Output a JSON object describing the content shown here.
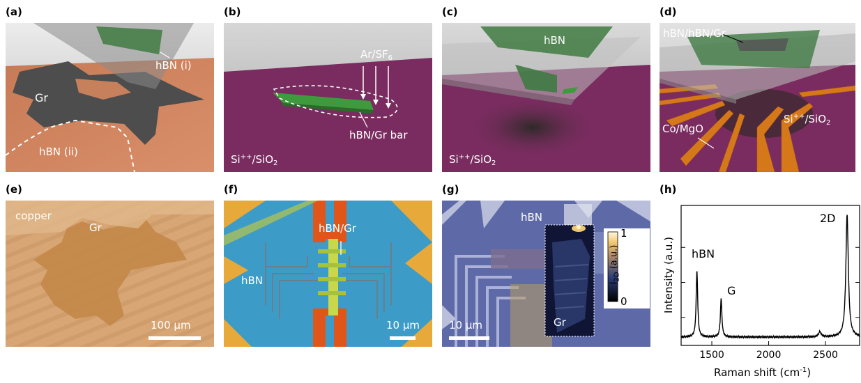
{
  "panels": {
    "a": {
      "label": "(a)",
      "texts": {
        "hbn_i": "hBN (i)",
        "gr": "Gr",
        "hbn_ii": "hBN (ii)"
      }
    },
    "b": {
      "label": "(b)",
      "texts": {
        "gas": "Ar/SF",
        "gas_sub": "6",
        "bar": "hBN/Gr bar",
        "sub_si": "Si",
        "sub_sup": "++",
        "sub_rest": "/SiO",
        "sub_sub": "2"
      }
    },
    "c": {
      "label": "(c)",
      "texts": {
        "hbn": "hBN",
        "sub_si": "Si",
        "sub_sup": "++",
        "sub_rest": "/SiO",
        "sub_sub": "2"
      }
    },
    "d": {
      "label": "(d)",
      "texts": {
        "stack": "hBN/hBN/Gr",
        "contacts": "Co/MgO",
        "sub_si": "Si",
        "sub_sup": "++",
        "sub_rest": "/SiO",
        "sub_sub": "2"
      }
    },
    "e": {
      "label": "(e)",
      "texts": {
        "copper": "copper",
        "gr": "Gr",
        "scale": "100 μm"
      }
    },
    "f": {
      "label": "(f)",
      "texts": {
        "hbngr": "hBN/Gr",
        "hbn": "hBN",
        "scale": "10 μm"
      }
    },
    "g": {
      "label": "(g)",
      "texts": {
        "hbn": "hBN",
        "gr": "Gr",
        "scale": "10 μm",
        "cb_max": "1",
        "cb_min": "0",
        "cb_label": "I",
        "cb_label_sub": "2D",
        "cb_label_unit": " (a.u.)"
      }
    },
    "h": {
      "label": "(h)",
      "texts": {
        "peak_hbn": "hBN",
        "peak_g": "G",
        "peak_2d": "2D"
      }
    }
  },
  "chart_data": {
    "type": "line",
    "xlabel": "Raman shift (cm-1)",
    "ylabel": "Intensity (a.u.)",
    "xlim": [
      1230,
      2800
    ],
    "x_ticks": [
      1500,
      2000,
      2500
    ],
    "series": [
      {
        "peaks": [
          {
            "x": 1369,
            "height": 0.52,
            "width": 8
          },
          {
            "x": 1582,
            "height": 0.3,
            "width": 8
          },
          {
            "x": 2450,
            "height": 0.04,
            "width": 14
          },
          {
            "x": 2690,
            "height": 0.96,
            "width": 13
          }
        ],
        "baseline": 0.02
      }
    ],
    "annotations": [
      "hBN",
      "G",
      "2D"
    ]
  }
}
